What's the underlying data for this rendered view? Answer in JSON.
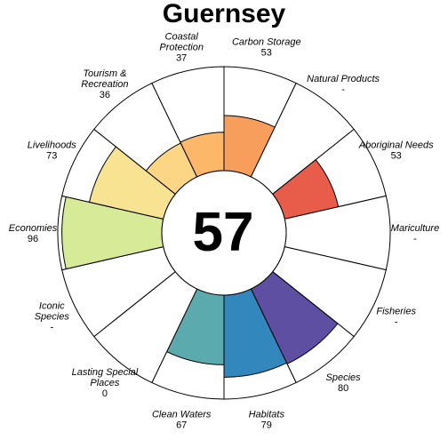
{
  "chart_data": {
    "type": "flower",
    "title": "Guernsey",
    "center_value": "57",
    "ylim": [
      0,
      100
    ],
    "petals": [
      {
        "label": [
          "Carbon Storage"
        ],
        "value_text": "53",
        "value": 53,
        "color": "#F89E5D"
      },
      {
        "label": [
          "Natural Products"
        ],
        "value_text": "-",
        "value": null,
        "color": "#FFFFFF"
      },
      {
        "label": [
          "Aboriginal Needs"
        ],
        "value_text": "53",
        "value": 53,
        "color": "#E85D4A"
      },
      {
        "label": [
          "Mariculture"
        ],
        "value_text": "-",
        "value": null,
        "color": "#FFFFFF"
      },
      {
        "label": [
          "Fisheries"
        ],
        "value_text": "-",
        "value": null,
        "color": "#FFFFFF"
      },
      {
        "label": [
          "Species"
        ],
        "value_text": "80",
        "value": 80,
        "color": "#5E4FA2"
      },
      {
        "label": [
          "Habitats"
        ],
        "value_text": "79",
        "value": 79,
        "color": "#3288BD"
      },
      {
        "label": [
          "Clean Waters"
        ],
        "value_text": "67",
        "value": 67,
        "color": "#5AAAAE"
      },
      {
        "label": [
          "Lasting Special",
          "Places"
        ],
        "value_text": "0",
        "value": 0,
        "color": "#FFFFFF"
      },
      {
        "label": [
          "Iconic",
          "Species"
        ],
        "value_text": "-",
        "value": null,
        "color": "#FFFFFF"
      },
      {
        "label": [
          "Economies"
        ],
        "value_text": "96",
        "value": 96,
        "color": "#D7EA97"
      },
      {
        "label": [
          "Livelihoods"
        ],
        "value_text": "73",
        "value": 73,
        "color": "#F7E391"
      },
      {
        "label": [
          "Tourism &",
          "Recreation"
        ],
        "value_text": "36",
        "value": 36,
        "color": "#FCD585"
      },
      {
        "label": [
          "Coastal",
          "Protection"
        ],
        "value_text": "37",
        "value": 37,
        "color": "#FDB769"
      }
    ]
  }
}
